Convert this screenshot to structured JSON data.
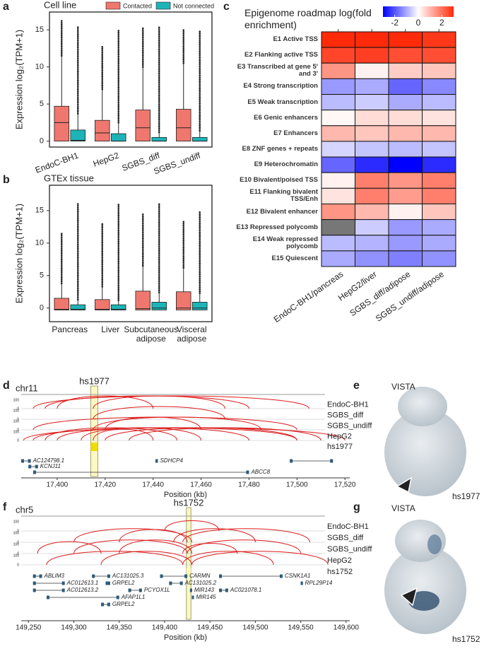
{
  "chart_data": [
    {
      "panel": "a",
      "type": "box",
      "title": "Cell line",
      "ylabel": "Expression log₂(TPM+1)",
      "categories": [
        "EndoC-BH1",
        "HepG2",
        "SGBS_diff",
        "SGBS_undiff"
      ],
      "series": [
        {
          "name": "Contacted",
          "color": "#f0776e",
          "values": [
            [
              0,
              0,
              2.5,
              4.7,
              11.5
            ],
            [
              0,
              0,
              1.1,
              2.8,
              7
            ],
            [
              0,
              0,
              1.8,
              4.2,
              10
            ],
            [
              0,
              0,
              1.8,
              4.3,
              10.5
            ]
          ],
          "outlier_max": [
            16.3,
            12.8,
            15.3,
            15
          ]
        },
        {
          "name": "Not connected",
          "color": "#1db4b8",
          "values": [
            [
              0,
              0,
              0.1,
              1.5,
              3.7
            ],
            [
              0,
              0,
              0,
              1,
              2.5
            ],
            [
              0,
              0,
              0,
              0.5,
              1.2
            ],
            [
              0,
              0,
              0,
              0.5,
              1.4
            ]
          ],
          "outlier_max": [
            15.5,
            15,
            15.5,
            15
          ]
        }
      ],
      "ylim": [
        -0.8,
        17.4
      ],
      "yticks": [
        0,
        5,
        10,
        15
      ],
      "legend": "top"
    },
    {
      "panel": "b",
      "type": "box",
      "title": "GTEx tissue",
      "ylabel": "Expression log₂(TPM+1)",
      "categories": [
        "Pancreas",
        "Liver",
        "Subcutaneous adipose",
        "Visceral adipose"
      ],
      "series": [
        {
          "color": "#f0776e",
          "values": [
            [
              -0.3,
              -0.3,
              -0.2,
              1.5,
              3.8
            ],
            [
              -0.3,
              -0.3,
              -0.2,
              1.3,
              3.3
            ],
            [
              -0.3,
              -0.3,
              -0.1,
              2.6,
              6.5
            ],
            [
              -0.3,
              -0.3,
              0,
              2.5,
              6.2
            ]
          ],
          "outlier_max": [
            11.5,
            13.1,
            14.5,
            13.5
          ]
        },
        {
          "color": "#1db4b8",
          "values": [
            [
              -0.3,
              -0.3,
              -0.2,
              0.5,
              1.3
            ],
            [
              -0.3,
              -0.3,
              -0.2,
              0.5,
              1.2
            ],
            [
              -0.3,
              -0.3,
              0,
              0.9,
              2.4
            ],
            [
              -0.3,
              -0.3,
              0,
              0.9,
              2.3
            ]
          ],
          "outlier_max": [
            16.2,
            16,
            16,
            15
          ]
        }
      ],
      "ylim": [
        -2.1,
        18.9
      ],
      "yticks": [
        0,
        5,
        10,
        15
      ]
    },
    {
      "panel": "c",
      "type": "heatmap",
      "title": "Epigenome roadmap log(fold enrichment)",
      "rows": [
        "E1 Active TSS",
        "E2 Flanking active TSS",
        "E3 Transcribed at gene 5' and 3'",
        "E4 Strong transcription",
        "E5 Weak transcription",
        "E6 Genic enhancers",
        "E7 Enhancers",
        "E8 ZNF genes + repeats",
        "E9 Heterochromatin",
        "E10 Bivalent/poised TSS",
        "E11 Flanking bivalent TSS/Enh",
        "E12 Bivalent enhancer",
        "E13 Repressed polycomb",
        "E14 Weak repressed polycomb",
        "E15 Quiescent"
      ],
      "columns": [
        "EndoC-BH1/pancreas",
        "HepG2/liver",
        "SGBS_diff/adipose",
        "SGBS_undiff/adipose"
      ],
      "values": [
        [
          3.0,
          3.0,
          3.0,
          2.8
        ],
        [
          2.6,
          2.7,
          2.5,
          2.5
        ],
        [
          1.5,
          0.2,
          0.7,
          0.8
        ],
        [
          -1.2,
          -1.0,
          -1.8,
          -1.4
        ],
        [
          -0.8,
          -0.6,
          -1.0,
          -0.8
        ],
        [
          0.1,
          0.5,
          0.5,
          0.4
        ],
        [
          1.0,
          0.8,
          1.0,
          1.0
        ],
        [
          -0.5,
          -0.7,
          -0.8,
          -0.7
        ],
        [
          -1.8,
          -2.5,
          -3.0,
          -2.5
        ],
        [
          0.2,
          1.8,
          1.5,
          1.8
        ],
        [
          0.4,
          1.8,
          1.4,
          1.8
        ],
        [
          1.5,
          1.0,
          0.2,
          0.8
        ],
        [
          null,
          -0.6,
          -1.2,
          -1.0
        ],
        [
          -0.8,
          -0.9,
          -1.2,
          -1.0
        ],
        [
          -1.0,
          -1.3,
          -1.5,
          -1.3
        ]
      ],
      "zlim": [
        -3,
        3
      ],
      "zticks": [
        -2,
        0,
        2
      ],
      "colors": [
        "#0000ff",
        "#ffffff",
        "#ff2a0a"
      ],
      "missing_color": "#777777"
    },
    {
      "panel": "d",
      "type": "tracks",
      "chrom": "chr11",
      "xlabel": "Position (kb)",
      "xlim": [
        17385,
        17522
      ],
      "xticks": [
        {
          "value": 17400,
          "label": "17,400"
        },
        {
          "value": 17420,
          "label": "17,420"
        },
        {
          "value": 17440,
          "label": "17,440"
        },
        {
          "value": 17460,
          "label": "17,460"
        },
        {
          "value": 17480,
          "label": "17,480"
        },
        {
          "value": 17500,
          "label": "17,500"
        },
        {
          "value": 17520,
          "label": "17,520"
        }
      ],
      "track_yticks": [
        0,
        100
      ],
      "arc_color": "#dd1c1c",
      "tracks": [
        {
          "name": "EndoC-BH1",
          "arcs": [
            [
              17390,
              17505
            ],
            [
              17395,
              17480
            ],
            [
              17415,
              17470
            ],
            [
              17400,
              17440
            ]
          ]
        },
        {
          "name": "SGBS_diff",
          "arcs": [
            [
              17415,
              17470
            ]
          ]
        },
        {
          "name": "SGBS_undiff",
          "arcs": [
            [
              17390,
              17500
            ],
            [
              17415,
              17485
            ],
            [
              17420,
              17460
            ]
          ]
        },
        {
          "name": "HepG2",
          "arcs": [
            [
              17386,
              17520
            ],
            [
              17390,
              17500
            ],
            [
              17400,
              17480
            ],
            [
              17410,
              17460
            ],
            [
              17415,
              17440
            ],
            [
              17420,
              17500
            ],
            [
              17395,
              17450
            ],
            [
              17430,
              17510
            ]
          ]
        }
      ],
      "element": {
        "name": "hs1977",
        "start": 17414,
        "end": 17417
      },
      "genes": [
        {
          "name": "AC124798.1",
          "start": 17385,
          "end": 17389
        },
        {
          "name": "KCNJ11",
          "start": 17388,
          "end": 17392
        },
        {
          "name": "SDHCP4",
          "start": 17441,
          "end": 17442
        },
        {
          "name": "ABCC8",
          "start": 17390,
          "end": 17480
        },
        {
          "name": null,
          "start": 17497,
          "end": 17515
        }
      ]
    },
    {
      "panel": "f",
      "type": "tracks",
      "chrom": "chr5",
      "xlabel": "Position (kb)",
      "xlim": [
        149242,
        149604
      ],
      "xticks": [
        {
          "value": 149250,
          "label": "149,250"
        },
        {
          "value": 149300,
          "label": "149,300"
        },
        {
          "value": 149350,
          "label": "149,350"
        },
        {
          "value": 149400,
          "label": "149,400"
        },
        {
          "value": 149450,
          "label": "149,450"
        },
        {
          "value": 149500,
          "label": "149,500"
        },
        {
          "value": 149550,
          "label": "149,550"
        },
        {
          "value": 149600,
          "label": "149,600"
        }
      ],
      "track_yticks": [
        0,
        100
      ],
      "arc_color": "#dd1c1c",
      "tracks": [
        {
          "name": "EndoC-BH1",
          "arcs": [
            [
              149400,
              149460
            ]
          ]
        },
        {
          "name": "SGBS_diff",
          "arcs": [
            [
              149300,
              149430
            ],
            [
              149350,
              149425
            ],
            [
              149410,
              149500
            ],
            [
              149420,
              149560
            ]
          ]
        },
        {
          "name": "SGBS_undiff",
          "arcs": [
            [
              149260,
              149330
            ],
            [
              149300,
              149425
            ],
            [
              149420,
              149480
            ],
            [
              149425,
              149550
            ],
            [
              149350,
              149430
            ]
          ]
        },
        {
          "name": "HepG2",
          "arcs": [
            [
              149270,
              149420
            ],
            [
              149330,
              149430
            ],
            [
              149420,
              149520
            ],
            [
              149430,
              149580
            ]
          ]
        }
      ],
      "element": {
        "name": "hs1752",
        "start": 149424,
        "end": 149429
      },
      "genes": [
        {
          "name": "ABLIM3",
          "start": 149255,
          "end": 149265
        },
        {
          "name": "AC012613.1",
          "start": 149255,
          "end": 149290
        },
        {
          "name": "AC012613.2",
          "start": 149255,
          "end": 149290
        },
        {
          "name": "AFAP1L1",
          "start": 149270,
          "end": 149350
        },
        {
          "name": "AC131025.3",
          "start": 149320,
          "end": 149340
        },
        {
          "name": "GRPEL2",
          "start": 149335,
          "end": 149340
        },
        {
          "name": "GRPEL2",
          "start": 149330,
          "end": 149340
        },
        {
          "name": "PCYOX1L",
          "start": 149360,
          "end": 149375
        },
        {
          "name": "CARMN",
          "start": 149395,
          "end": 149425
        },
        {
          "name": "AC131025.2",
          "start": 149405,
          "end": 149420
        },
        {
          "name": "MIR143",
          "start": 149428,
          "end": 149429
        },
        {
          "name": "MIR145",
          "start": 149430,
          "end": 149431
        },
        {
          "name": "CSNK1A1",
          "start": 149460,
          "end": 149530
        },
        {
          "name": "AC021078.1",
          "start": 149460,
          "end": 149470
        },
        {
          "name": "RPL29P14",
          "start": 149550,
          "end": 149552
        }
      ]
    }
  ],
  "images": [
    {
      "panel": "e",
      "title": "VISTA",
      "label": "hs1977"
    },
    {
      "panel": "g",
      "title": "VISTA",
      "label": "hs1752"
    }
  ]
}
